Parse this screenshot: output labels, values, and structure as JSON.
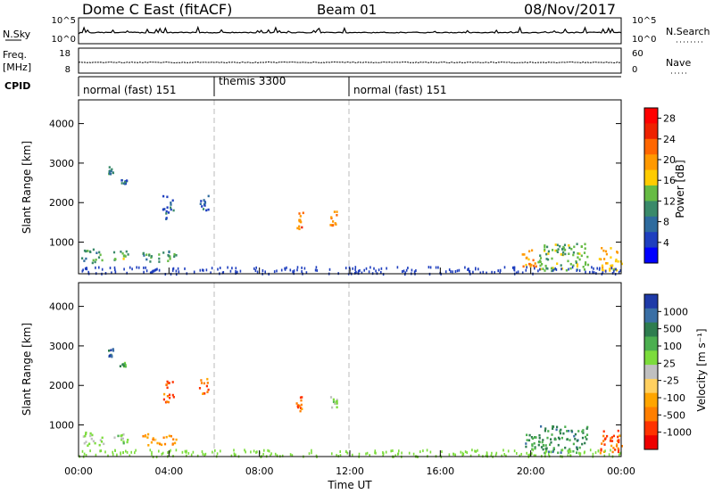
{
  "header": {
    "title": "Dome C East (fitACF)",
    "beam": "Beam 01",
    "date": "08/Nov/2017"
  },
  "strip_panels": {
    "nsky": {
      "label": "N.Sky",
      "left_ticks": [
        "10^5",
        "10^0"
      ],
      "right_label": "N.Search",
      "right_ticks": [
        "10^5",
        "10^0"
      ]
    },
    "freq": {
      "label_line1": "Freq.",
      "label_line2": "[MHz]",
      "left_ticks": [
        "18",
        "8"
      ],
      "right_label": "Nave",
      "right_ticks": [
        "60",
        "0"
      ]
    },
    "cpid": {
      "label": "CPID",
      "segments": [
        {
          "label": "normal (fast) 151",
          "start_h": 0,
          "end_h": 6
        },
        {
          "label": "themis 3300",
          "start_h": 6,
          "end_h": 12
        },
        {
          "label": "normal (fast) 151",
          "start_h": 12,
          "end_h": 24
        }
      ]
    }
  },
  "chart_data": [
    {
      "type": "heatmap",
      "name": "power",
      "ylabel": "Slant Range [km]",
      "yticks": [
        "1000",
        "2000",
        "3000",
        "4000"
      ],
      "ylim": [
        200,
        4600
      ],
      "xlim": [
        0,
        24
      ],
      "colorbar": {
        "label": "Power [dB]",
        "ticks": [
          "4",
          "8",
          "12",
          "16",
          "20",
          "24",
          "28"
        ],
        "range": [
          0,
          30
        ]
      },
      "colors": [
        "#0000ff",
        "#1f3fbf",
        "#2e6b9e",
        "#3a8a6a",
        "#66bb44",
        "#ffcc00",
        "#ff9900",
        "#ff6600",
        "#ee2200",
        "#ff0000"
      ],
      "echo_regions": [
        {
          "t0": 0.1,
          "t1": 1.1,
          "r0": 500,
          "r1": 850,
          "v": 10
        },
        {
          "t0": 1.5,
          "t1": 2.2,
          "r0": 550,
          "r1": 800,
          "v": 12
        },
        {
          "t0": 2.8,
          "t1": 4.3,
          "r0": 500,
          "r1": 800,
          "v": 11
        },
        {
          "t0": 1.3,
          "t1": 1.5,
          "r0": 2750,
          "r1": 2950,
          "v": 9
        },
        {
          "t0": 1.8,
          "t1": 2.1,
          "r0": 2500,
          "r1": 2600,
          "v": 8
        },
        {
          "t0": 3.7,
          "t1": 4.2,
          "r0": 1600,
          "r1": 2200,
          "v": 5
        },
        {
          "t0": 5.3,
          "t1": 5.8,
          "r0": 1800,
          "r1": 2200,
          "v": 6
        },
        {
          "t0": 9.6,
          "t1": 9.9,
          "r0": 1300,
          "r1": 1800,
          "v": 22
        },
        {
          "t0": 11.1,
          "t1": 11.5,
          "r0": 1400,
          "r1": 1800,
          "v": 20
        },
        {
          "t0": 19.6,
          "t1": 20.2,
          "r0": 400,
          "r1": 900,
          "v": 21
        },
        {
          "t0": 20.3,
          "t1": 22.5,
          "r0": 300,
          "r1": 1000,
          "v": 13
        },
        {
          "t0": 23.0,
          "t1": 24.0,
          "r0": 300,
          "r1": 900,
          "v": 17
        }
      ]
    },
    {
      "type": "heatmap",
      "name": "velocity",
      "ylabel": "Slant Range [km]",
      "yticks": [
        "1000",
        "2000",
        "3000",
        "4000"
      ],
      "ylim": [
        200,
        4600
      ],
      "xlim": [
        0,
        24
      ],
      "xticks": [
        "00:00",
        "04:00",
        "08:00",
        "12:00",
        "16:00",
        "20:00",
        "00:00"
      ],
      "xlabel": "Time UT",
      "colorbar": {
        "label": "Velocity [m s⁻¹]",
        "ticks": [
          "1000",
          "500",
          "100",
          "25",
          "-25",
          "-100",
          "-500",
          "-1000"
        ]
      },
      "colors": [
        "#1e3aa8",
        "#3a6fa5",
        "#2e7d4f",
        "#4caf50",
        "#7cdc3c",
        "#c0c0c0",
        "#ffd060",
        "#ffa500",
        "#ff7f00",
        "#ff3300",
        "#ee0000"
      ],
      "echo_regions": [
        {
          "t0": 0.1,
          "t1": 1.1,
          "r0": 500,
          "r1": 850,
          "v": 4
        },
        {
          "t0": 1.5,
          "t1": 2.2,
          "r0": 550,
          "r1": 800,
          "v": 4
        },
        {
          "t0": 2.8,
          "t1": 4.3,
          "r0": 500,
          "r1": 800,
          "v": 7
        },
        {
          "t0": 1.3,
          "t1": 1.5,
          "r0": 2750,
          "r1": 2950,
          "v": 1
        },
        {
          "t0": 1.8,
          "t1": 2.1,
          "r0": 2500,
          "r1": 2600,
          "v": 3
        },
        {
          "t0": 3.7,
          "t1": 4.2,
          "r0": 1600,
          "r1": 2200,
          "v": 8
        },
        {
          "t0": 5.3,
          "t1": 5.8,
          "r0": 1800,
          "r1": 2200,
          "v": 8
        },
        {
          "t0": 9.6,
          "t1": 9.9,
          "r0": 1300,
          "r1": 1800,
          "v": 8
        },
        {
          "t0": 11.1,
          "t1": 11.5,
          "r0": 1400,
          "r1": 1800,
          "v": 4
        },
        {
          "t0": 19.6,
          "t1": 20.2,
          "r0": 400,
          "r1": 900,
          "v": 2
        },
        {
          "t0": 20.3,
          "t1": 22.5,
          "r0": 300,
          "r1": 1000,
          "v": 2
        },
        {
          "t0": 23.0,
          "t1": 24.0,
          "r0": 300,
          "r1": 900,
          "v": 8
        }
      ]
    }
  ]
}
